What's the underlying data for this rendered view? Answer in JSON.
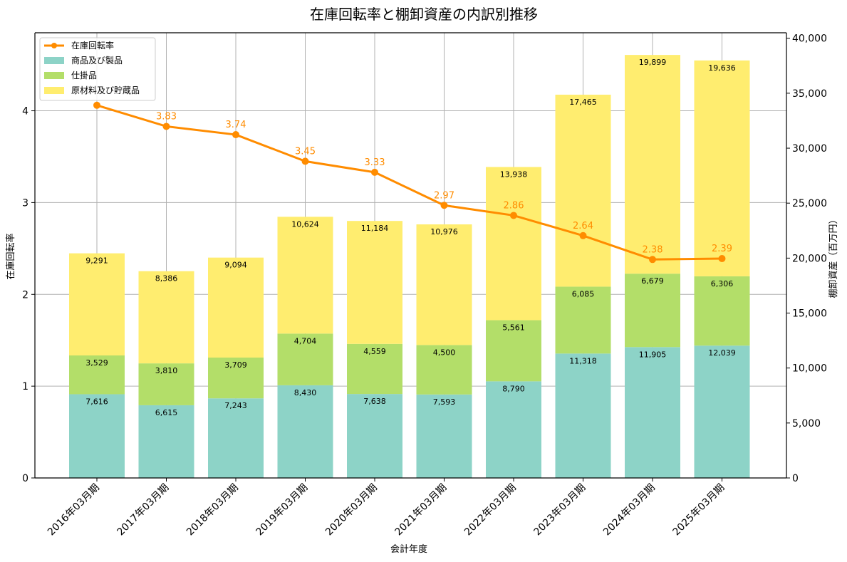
{
  "chart_data": {
    "type": "bar+line",
    "title": "在庫回転率と棚卸資産の内訳別推移",
    "xlabel": "会計年度",
    "ylabel_left": "在庫回転率",
    "ylabel_right": "棚卸資産（百万円）",
    "categories": [
      "2016年03月期",
      "2017年03月期",
      "2018年03月期",
      "2019年03月期",
      "2020年03月期",
      "2021年03月期",
      "2022年03月期",
      "2023年03月期",
      "2024年03月期",
      "2025年03月期"
    ],
    "bar_series": [
      {
        "name": "商品及び製品",
        "color": "#8dd3c7",
        "values": [
          7616,
          6615,
          7243,
          8430,
          7638,
          7593,
          8790,
          11318,
          11905,
          12039
        ]
      },
      {
        "name": "仕掛品",
        "color": "#b3de69",
        "values": [
          3529,
          3810,
          3709,
          4704,
          4559,
          4500,
          5561,
          6085,
          6679,
          6306
        ]
      },
      {
        "name": "原材料及び貯蔵品",
        "color": "#ffed6f",
        "values": [
          9291,
          8386,
          9094,
          10624,
          11184,
          10976,
          13938,
          17465,
          19899,
          19636
        ]
      }
    ],
    "line_series": {
      "name": "在庫回転率",
      "color": "#ff8c00",
      "values": [
        4.06,
        3.83,
        3.74,
        3.45,
        3.33,
        2.97,
        2.86,
        2.64,
        2.38,
        2.39
      ]
    },
    "line_label_texts": [
      "",
      "3.83",
      "3.74",
      "3.45",
      "3.33",
      "2.97",
      "2.86",
      "2.64",
      "2.38",
      "2.39"
    ],
    "left_axis": {
      "min": 0,
      "max": 4.85,
      "ticks": [
        0,
        1,
        2,
        3,
        4
      ]
    },
    "right_axis": {
      "min": 0,
      "max": 40500,
      "ticks": [
        0,
        5000,
        10000,
        15000,
        20000,
        25000,
        30000,
        35000,
        40000
      ],
      "tick_labels": [
        "0",
        "5,000",
        "10,000",
        "15,000",
        "20,000",
        "25,000",
        "30,000",
        "35,000",
        "40,000"
      ]
    },
    "grid": true,
    "legend_position": "top-left"
  }
}
